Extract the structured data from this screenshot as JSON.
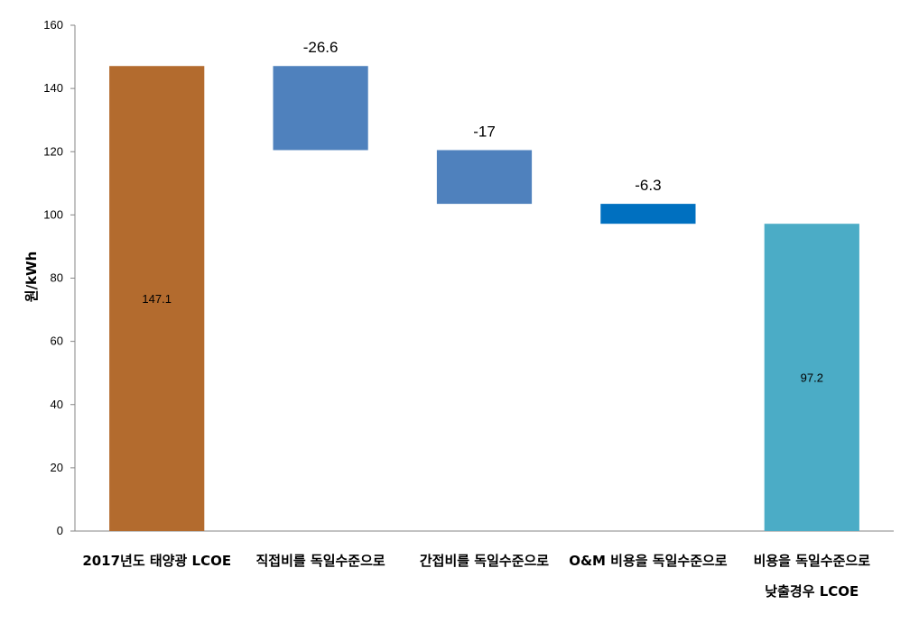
{
  "chart_data": {
    "type": "bar",
    "subtype": "waterfall",
    "title": "",
    "xlabel": "",
    "ylabel": "원/kWh",
    "ylim": [
      0,
      160
    ],
    "yticks": [
      0,
      20,
      40,
      60,
      80,
      100,
      120,
      140,
      160
    ],
    "grid": false,
    "legend": "none",
    "categories": [
      [
        "2017년도 태양광 LCOE"
      ],
      [
        "직접비를 독일수준으로"
      ],
      [
        "간접비를 독일수준으로"
      ],
      [
        "O&M 비용을 독일수준으로"
      ],
      [
        "비용을 독일수준으로",
        "낮출경우 LCOE"
      ]
    ],
    "bars": [
      {
        "kind": "total",
        "start": 0,
        "end": 147.1,
        "label": "147.1",
        "color": "#b36b2e"
      },
      {
        "kind": "delta",
        "start": 147.1,
        "end": 120.5,
        "label": "-26.6",
        "color": "#4f81bd"
      },
      {
        "kind": "delta",
        "start": 120.5,
        "end": 103.5,
        "label": "-17",
        "color": "#4f81bd"
      },
      {
        "kind": "delta",
        "start": 103.5,
        "end": 97.2,
        "label": "-6.3",
        "color": "#0070c0"
      },
      {
        "kind": "total",
        "start": 0,
        "end": 97.2,
        "label": "97.2",
        "color": "#4bacc6"
      }
    ]
  }
}
